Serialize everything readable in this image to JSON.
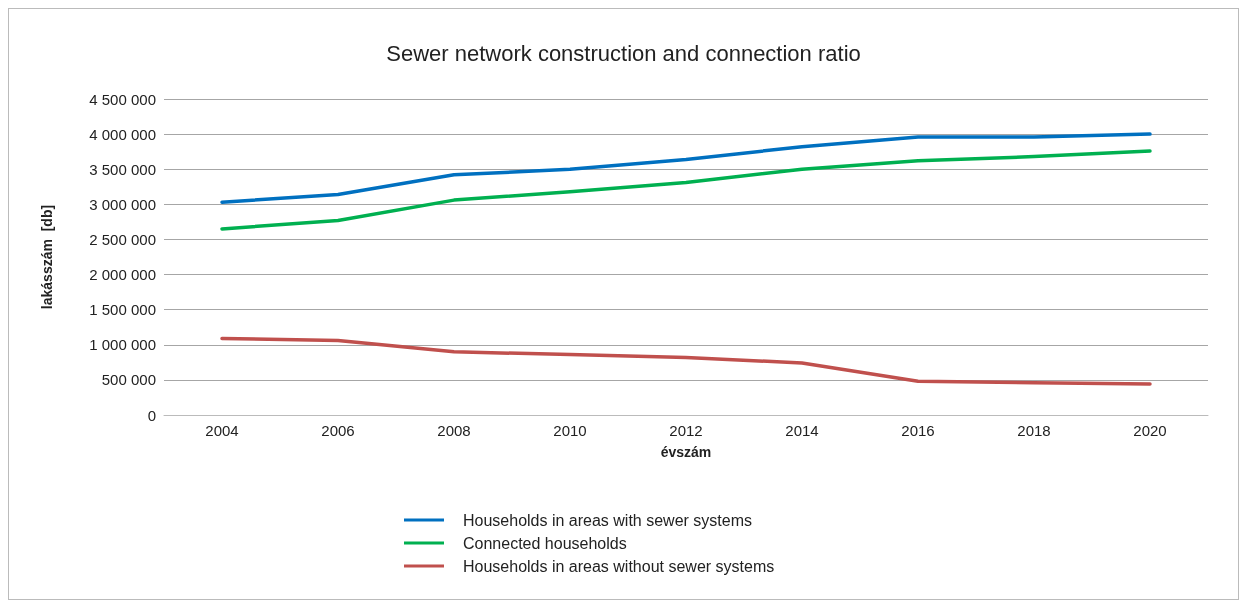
{
  "chart_data": {
    "type": "line",
    "title": "Sewer network construction and connection ratio",
    "xlabel": "évszám",
    "ylabel": "lakásszám  [db]",
    "categories": [
      "2004",
      "2006",
      "2008",
      "2010",
      "2012",
      "2014",
      "2016",
      "2018",
      "2020"
    ],
    "series": [
      {
        "name": "Households in areas with sewer systems",
        "color": "#0070c0",
        "values": [
          3030000,
          3140000,
          3420000,
          3500000,
          3640000,
          3820000,
          3960000,
          3960000,
          4000000
        ]
      },
      {
        "name": "Connected households",
        "color": "#00b050",
        "values": [
          2650000,
          2770000,
          3060000,
          3180000,
          3310000,
          3500000,
          3620000,
          3680000,
          3760000
        ]
      },
      {
        "name": "Households in areas without sewer systems",
        "color": "#c0504d",
        "values": [
          1090000,
          1060000,
          900000,
          860000,
          820000,
          740000,
          480000,
          460000,
          440000
        ]
      }
    ],
    "ylim": [
      0,
      4500000
    ],
    "yticks": [
      0,
      500000,
      1000000,
      1500000,
      2000000,
      2500000,
      3000000,
      3500000,
      4000000,
      4500000
    ],
    "grid": "y",
    "legend": "bottom",
    "marker": "none",
    "line_style": "solid"
  }
}
